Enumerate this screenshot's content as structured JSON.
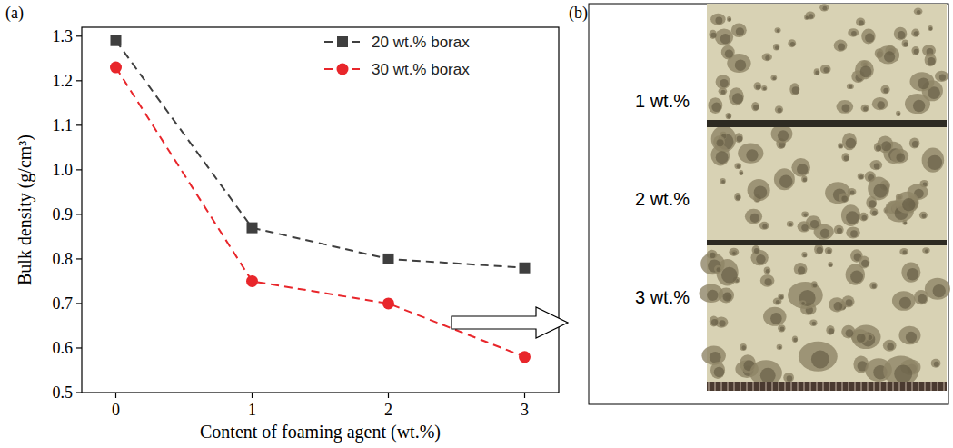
{
  "chart_data": {
    "type": "line",
    "x_label": "Content of foaming agent (wt.%)",
    "y_label": "Bulk density (g/cm³)",
    "x": [
      0,
      1,
      2,
      3
    ],
    "series": [
      {
        "name": "20 wt.% borax",
        "color": "#3f3f3f",
        "marker": "square",
        "line_style": "dashed",
        "values": [
          1.29,
          0.87,
          0.8,
          0.78
        ]
      },
      {
        "name": "30 wt.% borax",
        "color": "#e8262b",
        "marker": "circle",
        "line_style": "dashed",
        "values": [
          1.23,
          0.75,
          0.7,
          0.58
        ]
      }
    ],
    "xlim": [
      -0.25,
      3.25
    ],
    "xticks": [
      0,
      1,
      2,
      3
    ],
    "ylim": [
      0.5,
      1.32
    ],
    "yticks": [
      0.5,
      0.6,
      0.7,
      0.8,
      0.9,
      {
        "value": 1,
        "label": "1.0"
      },
      1.1,
      1.2,
      1.3
    ],
    "grid": false,
    "legend": "upper right"
  },
  "panel_labels": [
    "(a)",
    "(b)"
  ],
  "photo": {
    "labels": [
      "1 wt.%",
      "2 wt.%",
      "3 wt.%"
    ]
  }
}
